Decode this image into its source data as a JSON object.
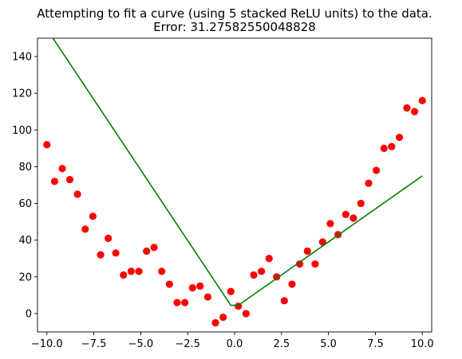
{
  "chart_data": {
    "type": "scatter",
    "title_line1": "Attempting to fit a curve (using 5 stacked ReLU units) to the data.",
    "title_line2": "Error: 31.27582550048828",
    "xlabel": "",
    "ylabel": "",
    "xlim": [
      -10.5,
      10.5
    ],
    "ylim": [
      -10,
      150
    ],
    "xticks": [
      -10,
      -7.5,
      -5,
      -2.5,
      0,
      2.5,
      5,
      7.5,
      10
    ],
    "xtick_labels": [
      "−10.0",
      "−7.5",
      "−5.0",
      "−2.5",
      "0.0",
      "2.5",
      "5.0",
      "7.5",
      "10.0"
    ],
    "yticks": [
      0,
      20,
      40,
      60,
      80,
      100,
      120,
      140
    ],
    "ytick_labels": [
      "0",
      "20",
      "40",
      "60",
      "80",
      "100",
      "120",
      "140"
    ],
    "grid": false,
    "colors": {
      "points": "#ff0000",
      "fit": "#008000",
      "axes": "#000000"
    },
    "series": [
      {
        "kind": "scatter",
        "x": [
          -10.0,
          -9.59,
          -9.18,
          -8.78,
          -8.37,
          -7.96,
          -7.55,
          -7.14,
          -6.73,
          -6.33,
          -5.92,
          -5.51,
          -5.1,
          -4.69,
          -4.29,
          -3.88,
          -3.47,
          -3.06,
          -2.65,
          -2.24,
          -1.84,
          -1.43,
          -1.02,
          -0.61,
          -0.2,
          0.2,
          0.61,
          1.02,
          1.43,
          1.84,
          2.24,
          2.65,
          3.06,
          3.47,
          3.88,
          4.29,
          4.69,
          5.1,
          5.51,
          5.92,
          6.33,
          6.73,
          7.14,
          7.55,
          7.96,
          8.37,
          8.78,
          9.18,
          9.59,
          10.0
        ],
        "y": [
          92,
          72,
          79,
          73,
          65,
          46,
          53,
          32,
          41,
          33,
          21,
          23,
          23,
          34,
          36,
          23,
          16,
          6,
          6,
          14,
          15,
          9,
          -5,
          -2,
          12,
          4,
          0,
          21,
          23,
          30,
          20,
          7,
          16,
          27,
          34,
          27,
          39,
          49,
          43,
          54,
          52,
          60,
          71,
          78,
          90,
          91,
          96,
          112,
          110,
          116
        ]
      },
      {
        "kind": "line",
        "x": [
          -10.0,
          -0.2,
          0.2,
          10.0
        ],
        "y": [
          155,
          4.5,
          4.5,
          75
        ]
      }
    ]
  }
}
